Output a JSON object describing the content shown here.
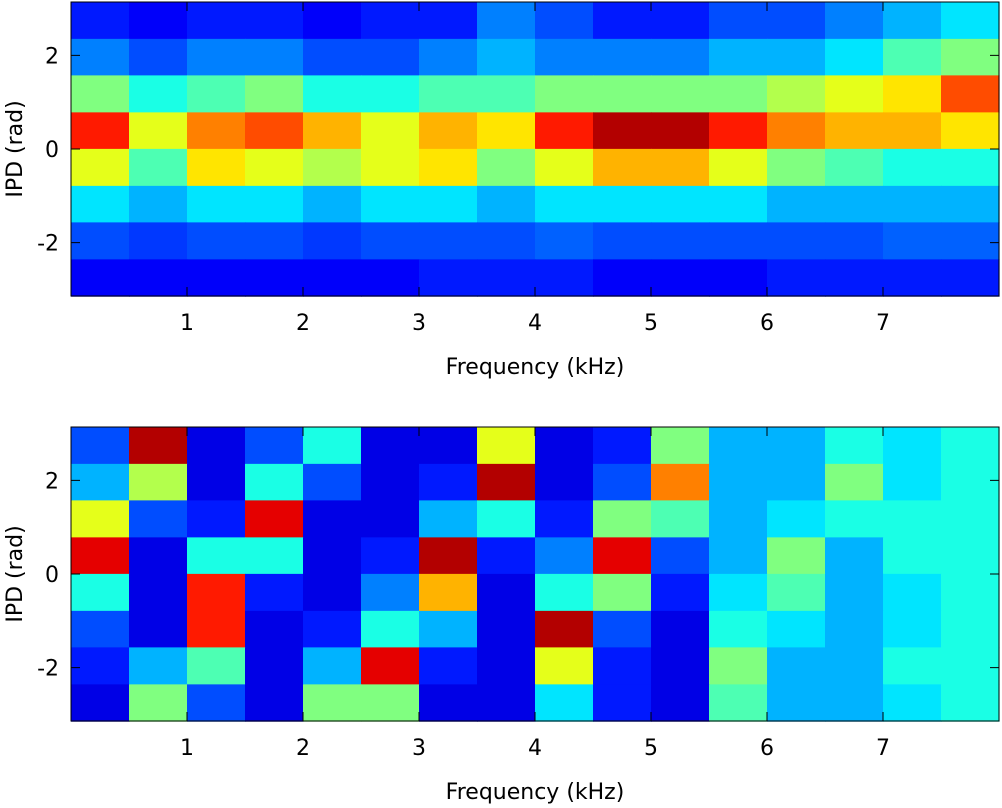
{
  "chart_data": [
    {
      "type": "heatmap",
      "xlabel": "Frequency (kHz)",
      "ylabel": "IPD (rad)",
      "xlim": [
        0,
        8
      ],
      "ylim": [
        -3.14,
        3.14
      ],
      "xticks": [
        1,
        2,
        3,
        4,
        5,
        6,
        7
      ],
      "yticks": [
        2,
        0,
        -2
      ],
      "colormap": "jet",
      "x": [
        0.25,
        0.75,
        1.25,
        1.75,
        2.25,
        2.75,
        3.25,
        3.75,
        4.25,
        4.75,
        5.25,
        5.75,
        6.25,
        6.75,
        7.25,
        7.75
      ],
      "y": [
        2.75,
        1.96,
        1.18,
        0.39,
        -0.39,
        -1.18,
        -1.96,
        -2.75
      ],
      "z": [
        [
          0.15,
          0.12,
          0.15,
          0.15,
          0.12,
          0.15,
          0.15,
          0.25,
          0.2,
          0.15,
          0.15,
          0.2,
          0.2,
          0.25,
          0.3,
          0.35
        ],
        [
          0.25,
          0.2,
          0.25,
          0.25,
          0.2,
          0.2,
          0.25,
          0.3,
          0.25,
          0.25,
          0.25,
          0.3,
          0.3,
          0.35,
          0.45,
          0.5
        ],
        [
          0.5,
          0.4,
          0.45,
          0.5,
          0.4,
          0.4,
          0.45,
          0.45,
          0.5,
          0.5,
          0.5,
          0.5,
          0.55,
          0.6,
          0.65,
          0.8
        ],
        [
          0.85,
          0.6,
          0.75,
          0.8,
          0.7,
          0.6,
          0.7,
          0.65,
          0.85,
          0.95,
          0.95,
          0.85,
          0.75,
          0.7,
          0.7,
          0.65
        ],
        [
          0.6,
          0.45,
          0.65,
          0.6,
          0.55,
          0.6,
          0.65,
          0.5,
          0.6,
          0.7,
          0.7,
          0.6,
          0.5,
          0.45,
          0.4,
          0.4
        ],
        [
          0.35,
          0.3,
          0.35,
          0.35,
          0.3,
          0.35,
          0.35,
          0.3,
          0.35,
          0.35,
          0.35,
          0.35,
          0.3,
          0.3,
          0.3,
          0.3
        ],
        [
          0.2,
          0.18,
          0.2,
          0.2,
          0.18,
          0.2,
          0.2,
          0.2,
          0.22,
          0.2,
          0.2,
          0.2,
          0.2,
          0.2,
          0.22,
          0.22
        ],
        [
          0.12,
          0.12,
          0.12,
          0.12,
          0.12,
          0.12,
          0.15,
          0.15,
          0.15,
          0.12,
          0.12,
          0.12,
          0.15,
          0.15,
          0.15,
          0.15
        ]
      ]
    },
    {
      "type": "heatmap",
      "xlabel": "Frequency (kHz)",
      "ylabel": "IPD (rad)",
      "xlim": [
        0,
        8
      ],
      "ylim": [
        -3.14,
        3.14
      ],
      "xticks": [
        1,
        2,
        3,
        4,
        5,
        6,
        7
      ],
      "yticks": [
        2,
        0,
        -2
      ],
      "colormap": "jet",
      "x": [
        0.25,
        0.75,
        1.25,
        1.75,
        2.25,
        2.75,
        3.25,
        3.75,
        4.25,
        4.75,
        5.25,
        5.75,
        6.25,
        6.75,
        7.25,
        7.75
      ],
      "y": [
        2.75,
        1.96,
        1.18,
        0.39,
        -0.39,
        -1.18,
        -1.96,
        -2.75
      ],
      "z": [
        [
          0.2,
          0.95,
          0.1,
          0.2,
          0.4,
          0.1,
          0.1,
          0.6,
          0.1,
          0.15,
          0.5,
          0.3,
          0.3,
          0.4,
          0.35,
          0.4
        ],
        [
          0.3,
          0.55,
          0.1,
          0.4,
          0.2,
          0.1,
          0.15,
          0.95,
          0.1,
          0.2,
          0.75,
          0.3,
          0.3,
          0.5,
          0.35,
          0.4
        ],
        [
          0.6,
          0.2,
          0.15,
          0.9,
          0.1,
          0.1,
          0.3,
          0.4,
          0.15,
          0.5,
          0.45,
          0.3,
          0.35,
          0.4,
          0.4,
          0.4
        ],
        [
          0.9,
          0.1,
          0.4,
          0.4,
          0.1,
          0.15,
          0.95,
          0.15,
          0.25,
          0.9,
          0.2,
          0.3,
          0.5,
          0.3,
          0.4,
          0.4
        ],
        [
          0.4,
          0.1,
          0.85,
          0.15,
          0.1,
          0.25,
          0.7,
          0.1,
          0.4,
          0.5,
          0.15,
          0.35,
          0.45,
          0.3,
          0.35,
          0.4
        ],
        [
          0.2,
          0.1,
          0.85,
          0.1,
          0.15,
          0.4,
          0.3,
          0.1,
          0.95,
          0.2,
          0.1,
          0.4,
          0.35,
          0.3,
          0.35,
          0.4
        ],
        [
          0.15,
          0.3,
          0.45,
          0.1,
          0.3,
          0.9,
          0.15,
          0.1,
          0.6,
          0.15,
          0.1,
          0.5,
          0.3,
          0.3,
          0.4,
          0.4
        ],
        [
          0.1,
          0.5,
          0.2,
          0.1,
          0.5,
          0.5,
          0.1,
          0.1,
          0.35,
          0.15,
          0.1,
          0.45,
          0.3,
          0.3,
          0.35,
          0.4
        ]
      ]
    }
  ]
}
